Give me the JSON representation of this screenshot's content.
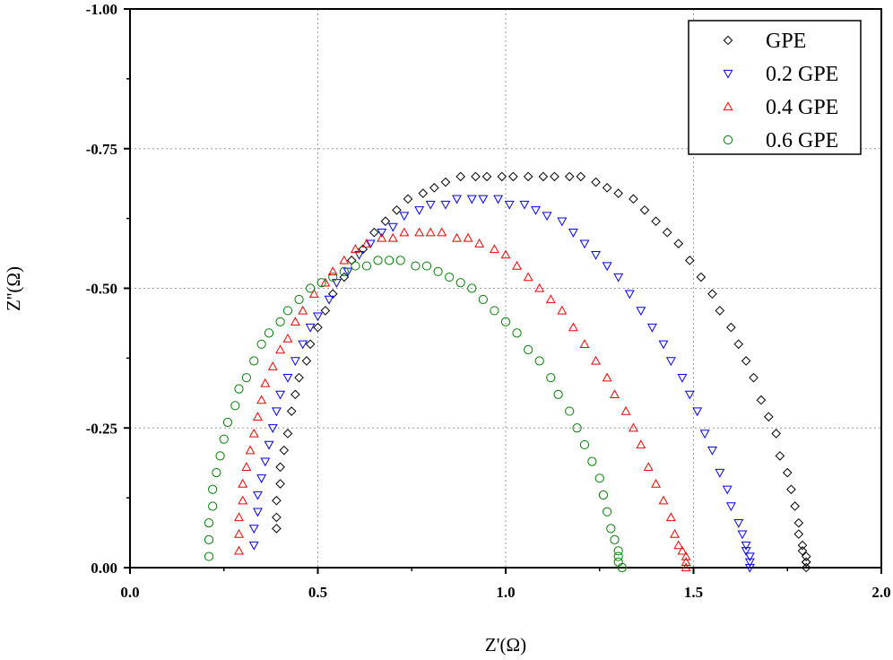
{
  "chart_data": {
    "type": "scatter",
    "xlabel": "Z'(Ω)",
    "ylabel": "Z''(Ω)",
    "xlim": [
      0.0,
      2.0
    ],
    "ylim": [
      0.0,
      -1.0
    ],
    "y_axis_inverted": true,
    "x_ticks": [
      "0.0",
      "0.5",
      "1.0",
      "1.5",
      "2.0"
    ],
    "y_ticks": [
      "0.00",
      "-0.25",
      "-0.50",
      "-0.75",
      "-1.00"
    ],
    "grid": true,
    "legend_position": "top-right",
    "series": [
      {
        "name": "GPE",
        "marker": "diamond",
        "color": "#000000",
        "x": [
          0.39,
          0.39,
          0.39,
          0.4,
          0.4,
          0.41,
          0.42,
          0.43,
          0.44,
          0.45,
          0.47,
          0.48,
          0.5,
          0.52,
          0.54,
          0.57,
          0.59,
          0.62,
          0.65,
          0.68,
          0.71,
          0.74,
          0.78,
          0.81,
          0.84,
          0.88,
          0.92,
          0.95,
          0.99,
          1.02,
          1.06,
          1.1,
          1.13,
          1.17,
          1.2,
          1.24,
          1.27,
          1.3,
          1.34,
          1.37,
          1.4,
          1.43,
          1.46,
          1.49,
          1.52,
          1.55,
          1.57,
          1.6,
          1.62,
          1.64,
          1.66,
          1.68,
          1.7,
          1.72,
          1.73,
          1.75,
          1.76,
          1.77,
          1.78,
          1.78,
          1.79,
          1.79,
          1.8,
          1.8,
          1.8,
          1.8
        ],
        "y": [
          -0.07,
          -0.09,
          -0.12,
          -0.15,
          -0.18,
          -0.21,
          -0.24,
          -0.28,
          -0.31,
          -0.34,
          -0.37,
          -0.4,
          -0.43,
          -0.46,
          -0.49,
          -0.52,
          -0.55,
          -0.57,
          -0.6,
          -0.62,
          -0.64,
          -0.66,
          -0.67,
          -0.68,
          -0.69,
          -0.7,
          -0.7,
          -0.7,
          -0.7,
          -0.7,
          -0.7,
          -0.7,
          -0.7,
          -0.7,
          -0.7,
          -0.69,
          -0.68,
          -0.67,
          -0.66,
          -0.64,
          -0.62,
          -0.6,
          -0.58,
          -0.55,
          -0.52,
          -0.49,
          -0.46,
          -0.43,
          -0.4,
          -0.37,
          -0.34,
          -0.3,
          -0.27,
          -0.24,
          -0.2,
          -0.17,
          -0.14,
          -0.11,
          -0.08,
          -0.06,
          -0.04,
          -0.03,
          -0.02,
          -0.01,
          -0.01,
          0.0
        ]
      },
      {
        "name": "0.2 GPE",
        "marker": "triangle-down",
        "color": "#0000ff",
        "x": [
          0.33,
          0.33,
          0.34,
          0.34,
          0.35,
          0.36,
          0.37,
          0.38,
          0.39,
          0.4,
          0.42,
          0.44,
          0.46,
          0.48,
          0.5,
          0.53,
          0.55,
          0.58,
          0.61,
          0.64,
          0.67,
          0.7,
          0.73,
          0.77,
          0.8,
          0.84,
          0.87,
          0.91,
          0.94,
          0.98,
          1.01,
          1.05,
          1.08,
          1.11,
          1.15,
          1.18,
          1.21,
          1.24,
          1.27,
          1.3,
          1.33,
          1.36,
          1.39,
          1.42,
          1.44,
          1.47,
          1.49,
          1.51,
          1.53,
          1.55,
          1.57,
          1.59,
          1.6,
          1.62,
          1.63,
          1.64,
          1.64,
          1.65,
          1.65,
          1.65
        ],
        "y": [
          -0.04,
          -0.07,
          -0.1,
          -0.13,
          -0.16,
          -0.19,
          -0.22,
          -0.25,
          -0.28,
          -0.31,
          -0.34,
          -0.37,
          -0.4,
          -0.43,
          -0.45,
          -0.48,
          -0.51,
          -0.53,
          -0.56,
          -0.58,
          -0.6,
          -0.61,
          -0.63,
          -0.64,
          -0.65,
          -0.65,
          -0.66,
          -0.66,
          -0.66,
          -0.66,
          -0.65,
          -0.65,
          -0.64,
          -0.63,
          -0.62,
          -0.6,
          -0.58,
          -0.56,
          -0.54,
          -0.52,
          -0.49,
          -0.46,
          -0.43,
          -0.4,
          -0.37,
          -0.34,
          -0.31,
          -0.28,
          -0.24,
          -0.21,
          -0.17,
          -0.14,
          -0.11,
          -0.08,
          -0.06,
          -0.04,
          -0.03,
          -0.02,
          -0.01,
          0.0
        ]
      },
      {
        "name": "0.4 GPE",
        "marker": "triangle-up",
        "color": "#ff0000",
        "x": [
          0.29,
          0.29,
          0.29,
          0.3,
          0.3,
          0.31,
          0.32,
          0.33,
          0.34,
          0.35,
          0.36,
          0.38,
          0.4,
          0.42,
          0.44,
          0.46,
          0.49,
          0.52,
          0.54,
          0.57,
          0.6,
          0.63,
          0.67,
          0.7,
          0.73,
          0.77,
          0.8,
          0.83,
          0.87,
          0.9,
          0.93,
          0.97,
          1.0,
          1.03,
          1.06,
          1.09,
          1.12,
          1.15,
          1.18,
          1.21,
          1.24,
          1.27,
          1.29,
          1.32,
          1.34,
          1.36,
          1.38,
          1.4,
          1.42,
          1.44,
          1.45,
          1.46,
          1.47,
          1.48,
          1.48,
          1.48
        ],
        "y": [
          -0.03,
          -0.06,
          -0.09,
          -0.12,
          -0.15,
          -0.18,
          -0.21,
          -0.24,
          -0.27,
          -0.3,
          -0.33,
          -0.36,
          -0.39,
          -0.41,
          -0.44,
          -0.46,
          -0.49,
          -0.51,
          -0.53,
          -0.55,
          -0.57,
          -0.58,
          -0.59,
          -0.59,
          -0.6,
          -0.6,
          -0.6,
          -0.6,
          -0.59,
          -0.59,
          -0.58,
          -0.57,
          -0.56,
          -0.54,
          -0.52,
          -0.5,
          -0.48,
          -0.46,
          -0.43,
          -0.4,
          -0.37,
          -0.34,
          -0.31,
          -0.28,
          -0.25,
          -0.22,
          -0.18,
          -0.15,
          -0.12,
          -0.09,
          -0.06,
          -0.04,
          -0.03,
          -0.02,
          -0.01,
          0.0
        ]
      },
      {
        "name": "0.6 GPE",
        "marker": "circle",
        "color": "#008000",
        "x": [
          0.21,
          0.21,
          0.21,
          0.22,
          0.22,
          0.23,
          0.24,
          0.25,
          0.26,
          0.28,
          0.29,
          0.31,
          0.33,
          0.35,
          0.37,
          0.4,
          0.42,
          0.45,
          0.48,
          0.51,
          0.54,
          0.57,
          0.6,
          0.63,
          0.66,
          0.69,
          0.72,
          0.76,
          0.79,
          0.82,
          0.85,
          0.88,
          0.91,
          0.94,
          0.97,
          1.0,
          1.03,
          1.06,
          1.09,
          1.12,
          1.14,
          1.17,
          1.19,
          1.21,
          1.23,
          1.25,
          1.26,
          1.27,
          1.28,
          1.29,
          1.3,
          1.3,
          1.3,
          1.31
        ],
        "y": [
          -0.02,
          -0.05,
          -0.08,
          -0.11,
          -0.14,
          -0.17,
          -0.2,
          -0.23,
          -0.26,
          -0.29,
          -0.32,
          -0.34,
          -0.37,
          -0.4,
          -0.42,
          -0.44,
          -0.46,
          -0.48,
          -0.5,
          -0.51,
          -0.52,
          -0.53,
          -0.54,
          -0.54,
          -0.55,
          -0.55,
          -0.55,
          -0.54,
          -0.54,
          -0.53,
          -0.52,
          -0.51,
          -0.5,
          -0.48,
          -0.46,
          -0.44,
          -0.42,
          -0.39,
          -0.37,
          -0.34,
          -0.31,
          -0.28,
          -0.25,
          -0.22,
          -0.19,
          -0.16,
          -0.13,
          -0.1,
          -0.07,
          -0.05,
          -0.03,
          -0.02,
          -0.01,
          0.0
        ]
      }
    ]
  }
}
